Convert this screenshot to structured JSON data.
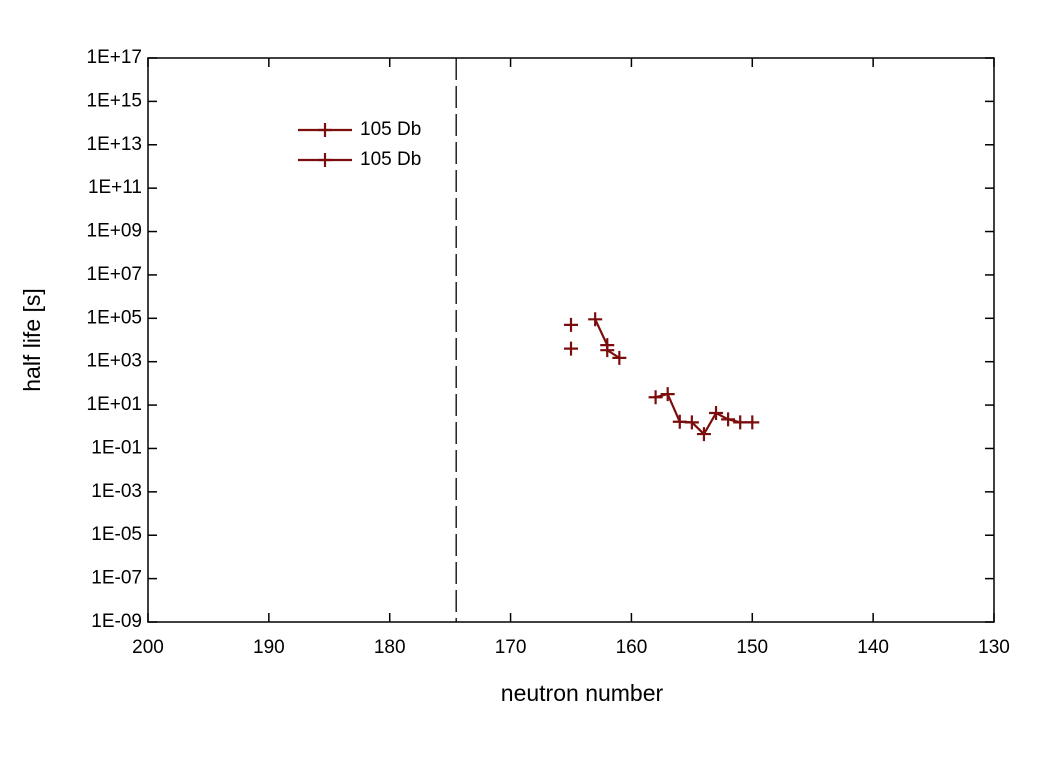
{
  "chart_data": {
    "type": "line",
    "x_label": "neutron number",
    "y_label": "half life [s]",
    "xlim": [
      200,
      130
    ],
    "xticks": [
      200,
      190,
      180,
      170,
      160,
      150,
      140,
      130
    ],
    "ylog": true,
    "ylim": [
      1e-09,
      1e+17
    ],
    "yticks": [
      {
        "value": 1e-09,
        "label": "1E-09"
      },
      {
        "value": 1e-07,
        "label": "1E-07"
      },
      {
        "value": 1e-05,
        "label": "1E-05"
      },
      {
        "value": 0.001,
        "label": "1E-03"
      },
      {
        "value": 0.1,
        "label": "1E-01"
      },
      {
        "value": 10.0,
        "label": "1E+01"
      },
      {
        "value": 1000.0,
        "label": "1E+03"
      },
      {
        "value": 100000.0,
        "label": "1E+05"
      },
      {
        "value": 10000000.0,
        "label": "1E+07"
      },
      {
        "value": 1000000000.0,
        "label": "1E+09"
      },
      {
        "value": 100000000000.0,
        "label": "1E+11"
      },
      {
        "value": 10000000000000.0,
        "label": "1E+13"
      },
      {
        "value": 1000000000000000.0,
        "label": "1E+15"
      },
      {
        "value": 1e+17,
        "label": "1E+17"
      }
    ],
    "vline": 174.5,
    "legend": "upper left",
    "series": [
      {
        "name": "105 Db",
        "color": "#7b0d0d",
        "line": true,
        "x": [
          163,
          162,
          162,
          161,
          160,
          158,
          157,
          156,
          155,
          154,
          153,
          152,
          151,
          150
        ],
        "values": [
          90000,
          5800,
          3400,
          1500,
          null,
          23,
          32,
          1.7,
          1.6,
          0.46,
          4.3,
          2.2,
          1.6,
          1.6
        ]
      },
      {
        "name": "105 Db",
        "color": "#7b0d0d",
        "line": false,
        "x": [
          165,
          165
        ],
        "values": [
          50000,
          4000
        ]
      }
    ]
  }
}
